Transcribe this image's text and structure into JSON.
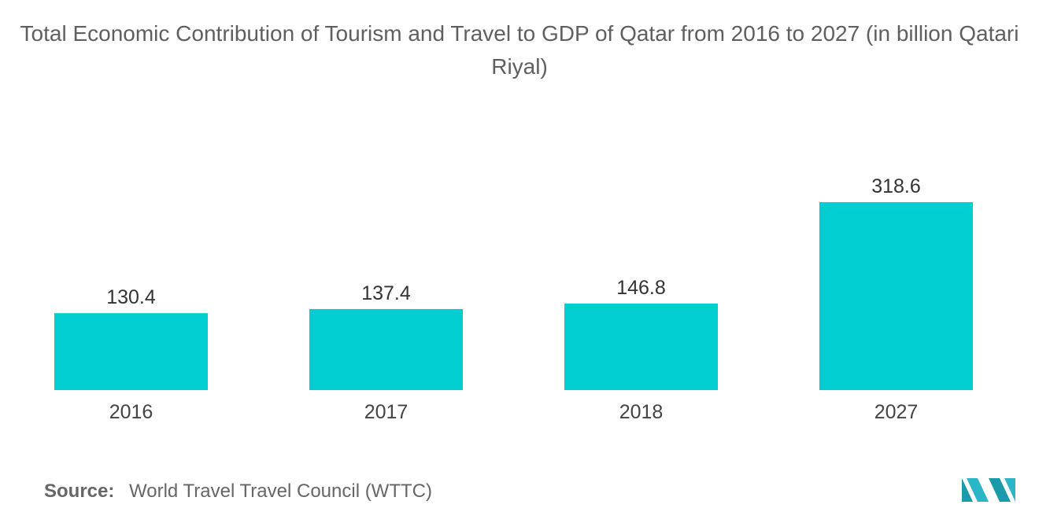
{
  "chart_data": {
    "type": "bar",
    "title": "Total Economic Contribution of Tourism and Travel to GDP of Qatar from 2016 to 2027 (in billion Qatari Riyal)",
    "categories": [
      "2016",
      "2017",
      "2018",
      "2027"
    ],
    "values": [
      130.4,
      137.4,
      146.8,
      318.6
    ],
    "value_labels": [
      "130.4",
      "137.4",
      "146.8",
      "318.6"
    ],
    "xlabel": "",
    "ylabel": "",
    "ylim": [
      0,
      360
    ],
    "grid": false,
    "legend": "none",
    "bar_color": "#00CED1"
  },
  "source": {
    "label": "Source:",
    "text": "World Travel Travel Council (WTTC)"
  },
  "logo": {
    "icon": "mordor-intelligence-logo-icon",
    "colors": [
      "#1B9AAA",
      "#2BB5C7"
    ]
  }
}
